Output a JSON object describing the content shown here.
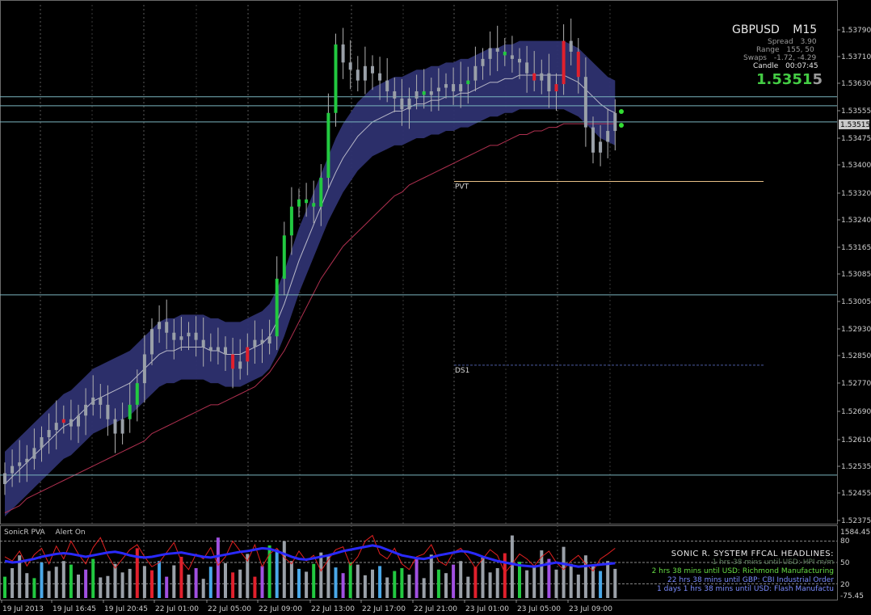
{
  "instrument": {
    "symbol": "GBPUSD",
    "timeframe": "M15",
    "spread_label": "Spread",
    "spread_value": "3.90",
    "range_label": "Range",
    "range_value": "155, 50",
    "swaps_label": "Swaps",
    "swaps_value": "-1.72, -4.29",
    "candle_label": "Candle",
    "candle_value": "00:07:45",
    "price_main": "1.5351",
    "price_last_digit": "5",
    "current_price_tag": "1.53515"
  },
  "colors": {
    "background": "#000000",
    "grid": "#5a5a5a",
    "bull_candle": "#22c940",
    "bear_candle": "#e0202c",
    "neutral_candle": "#9aa0a8",
    "ema_band": "#2e3270",
    "horizontal_lines": "#7ab4be",
    "pivot_line": "#e8c088",
    "ds1_line": "#4a5aa0",
    "sma_line": "#b03050",
    "price_axis_text": "#cfcfcf",
    "accent_green": "#44cc44"
  },
  "chart_data": [
    {
      "type": "candlestick",
      "title": "GBPUSD M15",
      "y_ticks": [
        "1.53790",
        "1.53710",
        "1.53630",
        "1.53555",
        "1.53475",
        "1.53400",
        "1.53320",
        "1.53240",
        "1.53165",
        "1.53085",
        "1.53005",
        "1.52930",
        "1.52850",
        "1.52770",
        "1.52690",
        "1.52610",
        "1.52535",
        "1.52455",
        "1.52375"
      ],
      "x_ticks": [
        "19 Jul 2013",
        "19 Jul 16:45",
        "19 Jul 20:45",
        "22 Jul 01:00",
        "22 Jul 05:00",
        "22 Jul 09:00",
        "22 Jul 13:00",
        "22 Jul 17:00",
        "22 Jul 21:00",
        "23 Jul 01:00",
        "23 Jul 05:00",
        "23 Jul 09:00"
      ],
      "ylim": [
        1.5237,
        1.5381
      ],
      "pivot_levels": [
        {
          "label": "PVT",
          "value": 1.5332
        },
        {
          "label": "DS1",
          "value": 1.5281
        }
      ],
      "horizontal_levels": [
        1.53555,
        1.5353,
        1.53485,
        1.53005,
        1.52505
      ],
      "close_series": [
        1.5251,
        1.5253,
        1.5254,
        1.5255,
        1.5258,
        1.5261,
        1.5263,
        1.5265,
        1.5266,
        1.5264,
        1.5267,
        1.527,
        1.5272,
        1.527,
        1.5266,
        1.5262,
        1.5266,
        1.527,
        1.5276,
        1.5284,
        1.5291,
        1.5293,
        1.529,
        1.5288,
        1.5289,
        1.529,
        1.5288,
        1.5286,
        1.5285,
        1.5286,
        1.5284,
        1.528,
        1.5282,
        1.5286,
        1.5288,
        1.5287,
        1.5289,
        1.5305,
        1.5317,
        1.5325,
        1.5327,
        1.5326,
        1.5325,
        1.5333,
        1.5351,
        1.537,
        1.5365,
        1.5363,
        1.536,
        1.5364,
        1.5362,
        1.536,
        1.5357,
        1.5355,
        1.5352,
        1.5355,
        1.5357,
        1.5356,
        1.5357,
        1.5358,
        1.5359,
        1.5357,
        1.5359,
        1.536,
        1.5364,
        1.5366,
        1.5369,
        1.5368,
        1.5367,
        1.5366,
        1.5365,
        1.5362,
        1.536,
        1.5362,
        1.5357,
        1.5359,
        1.5371,
        1.5368,
        1.5361,
        1.5347,
        1.534,
        1.5343,
        1.5346,
        1.5351
      ],
      "bull_candles": [
        17,
        18,
        37,
        38,
        39,
        40,
        41,
        42,
        43,
        44,
        45,
        57,
        63,
        68
      ],
      "bear_candles": [
        8,
        31,
        33,
        72,
        75,
        76,
        78
      ],
      "band_upper": [
        1.5253,
        1.5255,
        1.5257,
        1.5259,
        1.5261,
        1.5263,
        1.5265,
        1.5267,
        1.5269,
        1.527,
        1.5272,
        1.5274,
        1.5276,
        1.5277,
        1.5278,
        1.5279,
        1.528,
        1.5281,
        1.5283,
        1.5285,
        1.5287,
        1.5289,
        1.529,
        1.529,
        1.5291,
        1.5291,
        1.5291,
        1.5291,
        1.529,
        1.529,
        1.5289,
        1.5289,
        1.5289,
        1.529,
        1.5291,
        1.5292,
        1.5294,
        1.5298,
        1.5303,
        1.5309,
        1.5315,
        1.532,
        1.5325,
        1.533,
        1.5335,
        1.534,
        1.5344,
        1.5347,
        1.535,
        1.5352,
        1.5354,
        1.5355,
        1.5356,
        1.5357,
        1.5357,
        1.5358,
        1.5359,
        1.5359,
        1.536,
        1.536,
        1.5361,
        1.5361,
        1.5362,
        1.5362,
        1.5363,
        1.5364,
        1.5365,
        1.5365,
        1.5366,
        1.5366,
        1.5367,
        1.5367,
        1.5367,
        1.5367,
        1.5367,
        1.5367,
        1.5367,
        1.5366,
        1.5365,
        1.5363,
        1.5361,
        1.5359,
        1.5357,
        1.5356
      ],
      "band_lower": [
        1.5243,
        1.5245,
        1.5247,
        1.5249,
        1.5251,
        1.5253,
        1.5255,
        1.5257,
        1.5259,
        1.526,
        1.5262,
        1.5264,
        1.5266,
        1.5267,
        1.5268,
        1.5269,
        1.527,
        1.5271,
        1.5273,
        1.5275,
        1.5277,
        1.5279,
        1.528,
        1.528,
        1.5281,
        1.5281,
        1.5281,
        1.5281,
        1.528,
        1.528,
        1.5279,
        1.5279,
        1.5279,
        1.528,
        1.5281,
        1.5282,
        1.5284,
        1.5288,
        1.5293,
        1.5299,
        1.5305,
        1.531,
        1.5315,
        1.532,
        1.5325,
        1.5329,
        1.5333,
        1.5336,
        1.5339,
        1.5341,
        1.5343,
        1.5344,
        1.5345,
        1.5346,
        1.5346,
        1.5347,
        1.5348,
        1.5348,
        1.5349,
        1.5349,
        1.535,
        1.535,
        1.5351,
        1.5351,
        1.5352,
        1.5353,
        1.5354,
        1.5354,
        1.5355,
        1.5355,
        1.5356,
        1.5356,
        1.5356,
        1.5356,
        1.5356,
        1.5356,
        1.5356,
        1.5355,
        1.5354,
        1.5352,
        1.535,
        1.5348,
        1.5347,
        1.5346
      ],
      "sma_series": [
        1.524,
        1.5241,
        1.5242,
        1.5244,
        1.5245,
        1.5246,
        1.5247,
        1.5248,
        1.5249,
        1.525,
        1.5251,
        1.5252,
        1.5253,
        1.5254,
        1.5255,
        1.5256,
        1.5257,
        1.5258,
        1.5259,
        1.526,
        1.5262,
        1.5263,
        1.5264,
        1.5265,
        1.5266,
        1.5267,
        1.5268,
        1.5269,
        1.527,
        1.527,
        1.5271,
        1.5272,
        1.5273,
        1.5274,
        1.5275,
        1.5277,
        1.5279,
        1.5282,
        1.5285,
        1.5289,
        1.5293,
        1.5297,
        1.5301,
        1.5305,
        1.5308,
        1.5311,
        1.5314,
        1.5316,
        1.5318,
        1.532,
        1.5322,
        1.5324,
        1.5326,
        1.5328,
        1.5329,
        1.5331,
        1.5332,
        1.5333,
        1.5334,
        1.5335,
        1.5336,
        1.5337,
        1.5338,
        1.5339,
        1.534,
        1.5341,
        1.5342,
        1.5342,
        1.5343,
        1.5344,
        1.5345,
        1.5345,
        1.5346,
        1.5346,
        1.5347,
        1.5347,
        1.5348,
        1.5348,
        1.5348,
        1.5348,
        1.5348,
        1.5348,
        1.5348,
        1.5348
      ]
    },
    {
      "type": "bar",
      "title": "SonicR PVA",
      "subtitle": "Alert On",
      "y_ticks": [
        "1584.45",
        "80",
        "50",
        "20",
        "-75.45"
      ],
      "volume_values": [
        30,
        42,
        60,
        35,
        28,
        50,
        38,
        44,
        52,
        47,
        33,
        40,
        55,
        29,
        31,
        48,
        36,
        41,
        70,
        45,
        39,
        52,
        30,
        46,
        58,
        33,
        42,
        27,
        44,
        85,
        49,
        36,
        40,
        62,
        30,
        45,
        74,
        68,
        80,
        52,
        41,
        37,
        48,
        64,
        59,
        43,
        35,
        50,
        47,
        32,
        40,
        45,
        29,
        38,
        42,
        33,
        56,
        28,
        61,
        40,
        35,
        47,
        52,
        30,
        44,
        58,
        36,
        42,
        63,
        88,
        51,
        39,
        46,
        67,
        55,
        40,
        72,
        48,
        33,
        60,
        45,
        38,
        52,
        41
      ],
      "oscillator_red": [
        58,
        52,
        66,
        45,
        61,
        70,
        48,
        73,
        55,
        80,
        62,
        48,
        71,
        85,
        60,
        42,
        55,
        68,
        75,
        58,
        44,
        50,
        64,
        78,
        52,
        40,
        62,
        55,
        71,
        46,
        58,
        80,
        66,
        52,
        75,
        44,
        62,
        70,
        57,
        48,
        66,
        52,
        60,
        38,
        54,
        68,
        72,
        46,
        58,
        80,
        88,
        62,
        55,
        70,
        48,
        40,
        58,
        62,
        75,
        52,
        46,
        64,
        70,
        58,
        42,
        55,
        68,
        60,
        35,
        48,
        62,
        55,
        45,
        58,
        66,
        50,
        40,
        52,
        60,
        48,
        38,
        55,
        62,
        70
      ],
      "oscillator_blue": [
        52,
        50,
        51,
        53,
        55,
        58,
        60,
        62,
        63,
        62,
        60,
        58,
        60,
        62,
        64,
        65,
        63,
        60,
        58,
        57,
        58,
        60,
        62,
        63,
        64,
        62,
        60,
        58,
        57,
        59,
        61,
        63,
        65,
        66,
        68,
        70,
        69,
        66,
        62,
        58,
        55,
        54,
        56,
        58,
        60,
        63,
        66,
        68,
        70,
        72,
        74,
        72,
        68,
        64,
        60,
        58,
        56,
        55,
        57,
        60,
        62,
        64,
        66,
        65,
        62,
        58,
        55,
        52,
        50,
        48,
        46,
        45,
        44,
        46,
        48,
        50,
        48,
        46,
        44,
        45,
        46,
        47,
        48,
        49
      ],
      "level_lines": [
        80,
        50,
        20
      ]
    }
  ],
  "headlines": {
    "title": "SONIC R. SYSTEM  FFCAL HEADLINES:",
    "items": [
      {
        "text": "1 hrs 38 mins until USD: HPI m/m",
        "color": "#5a7a5a"
      },
      {
        "text": "2 hrs 38 mins until USD: Richmond Manufacturing",
        "color": "#66dd44"
      },
      {
        "text": "22 hrs 38 mins until GBP: CBI Industrial Order",
        "color": "#7b8cff"
      },
      {
        "text": "1 days 1 hrs 38 mins until USD: Flash Manufactu",
        "color": "#7b8cff"
      }
    ]
  }
}
